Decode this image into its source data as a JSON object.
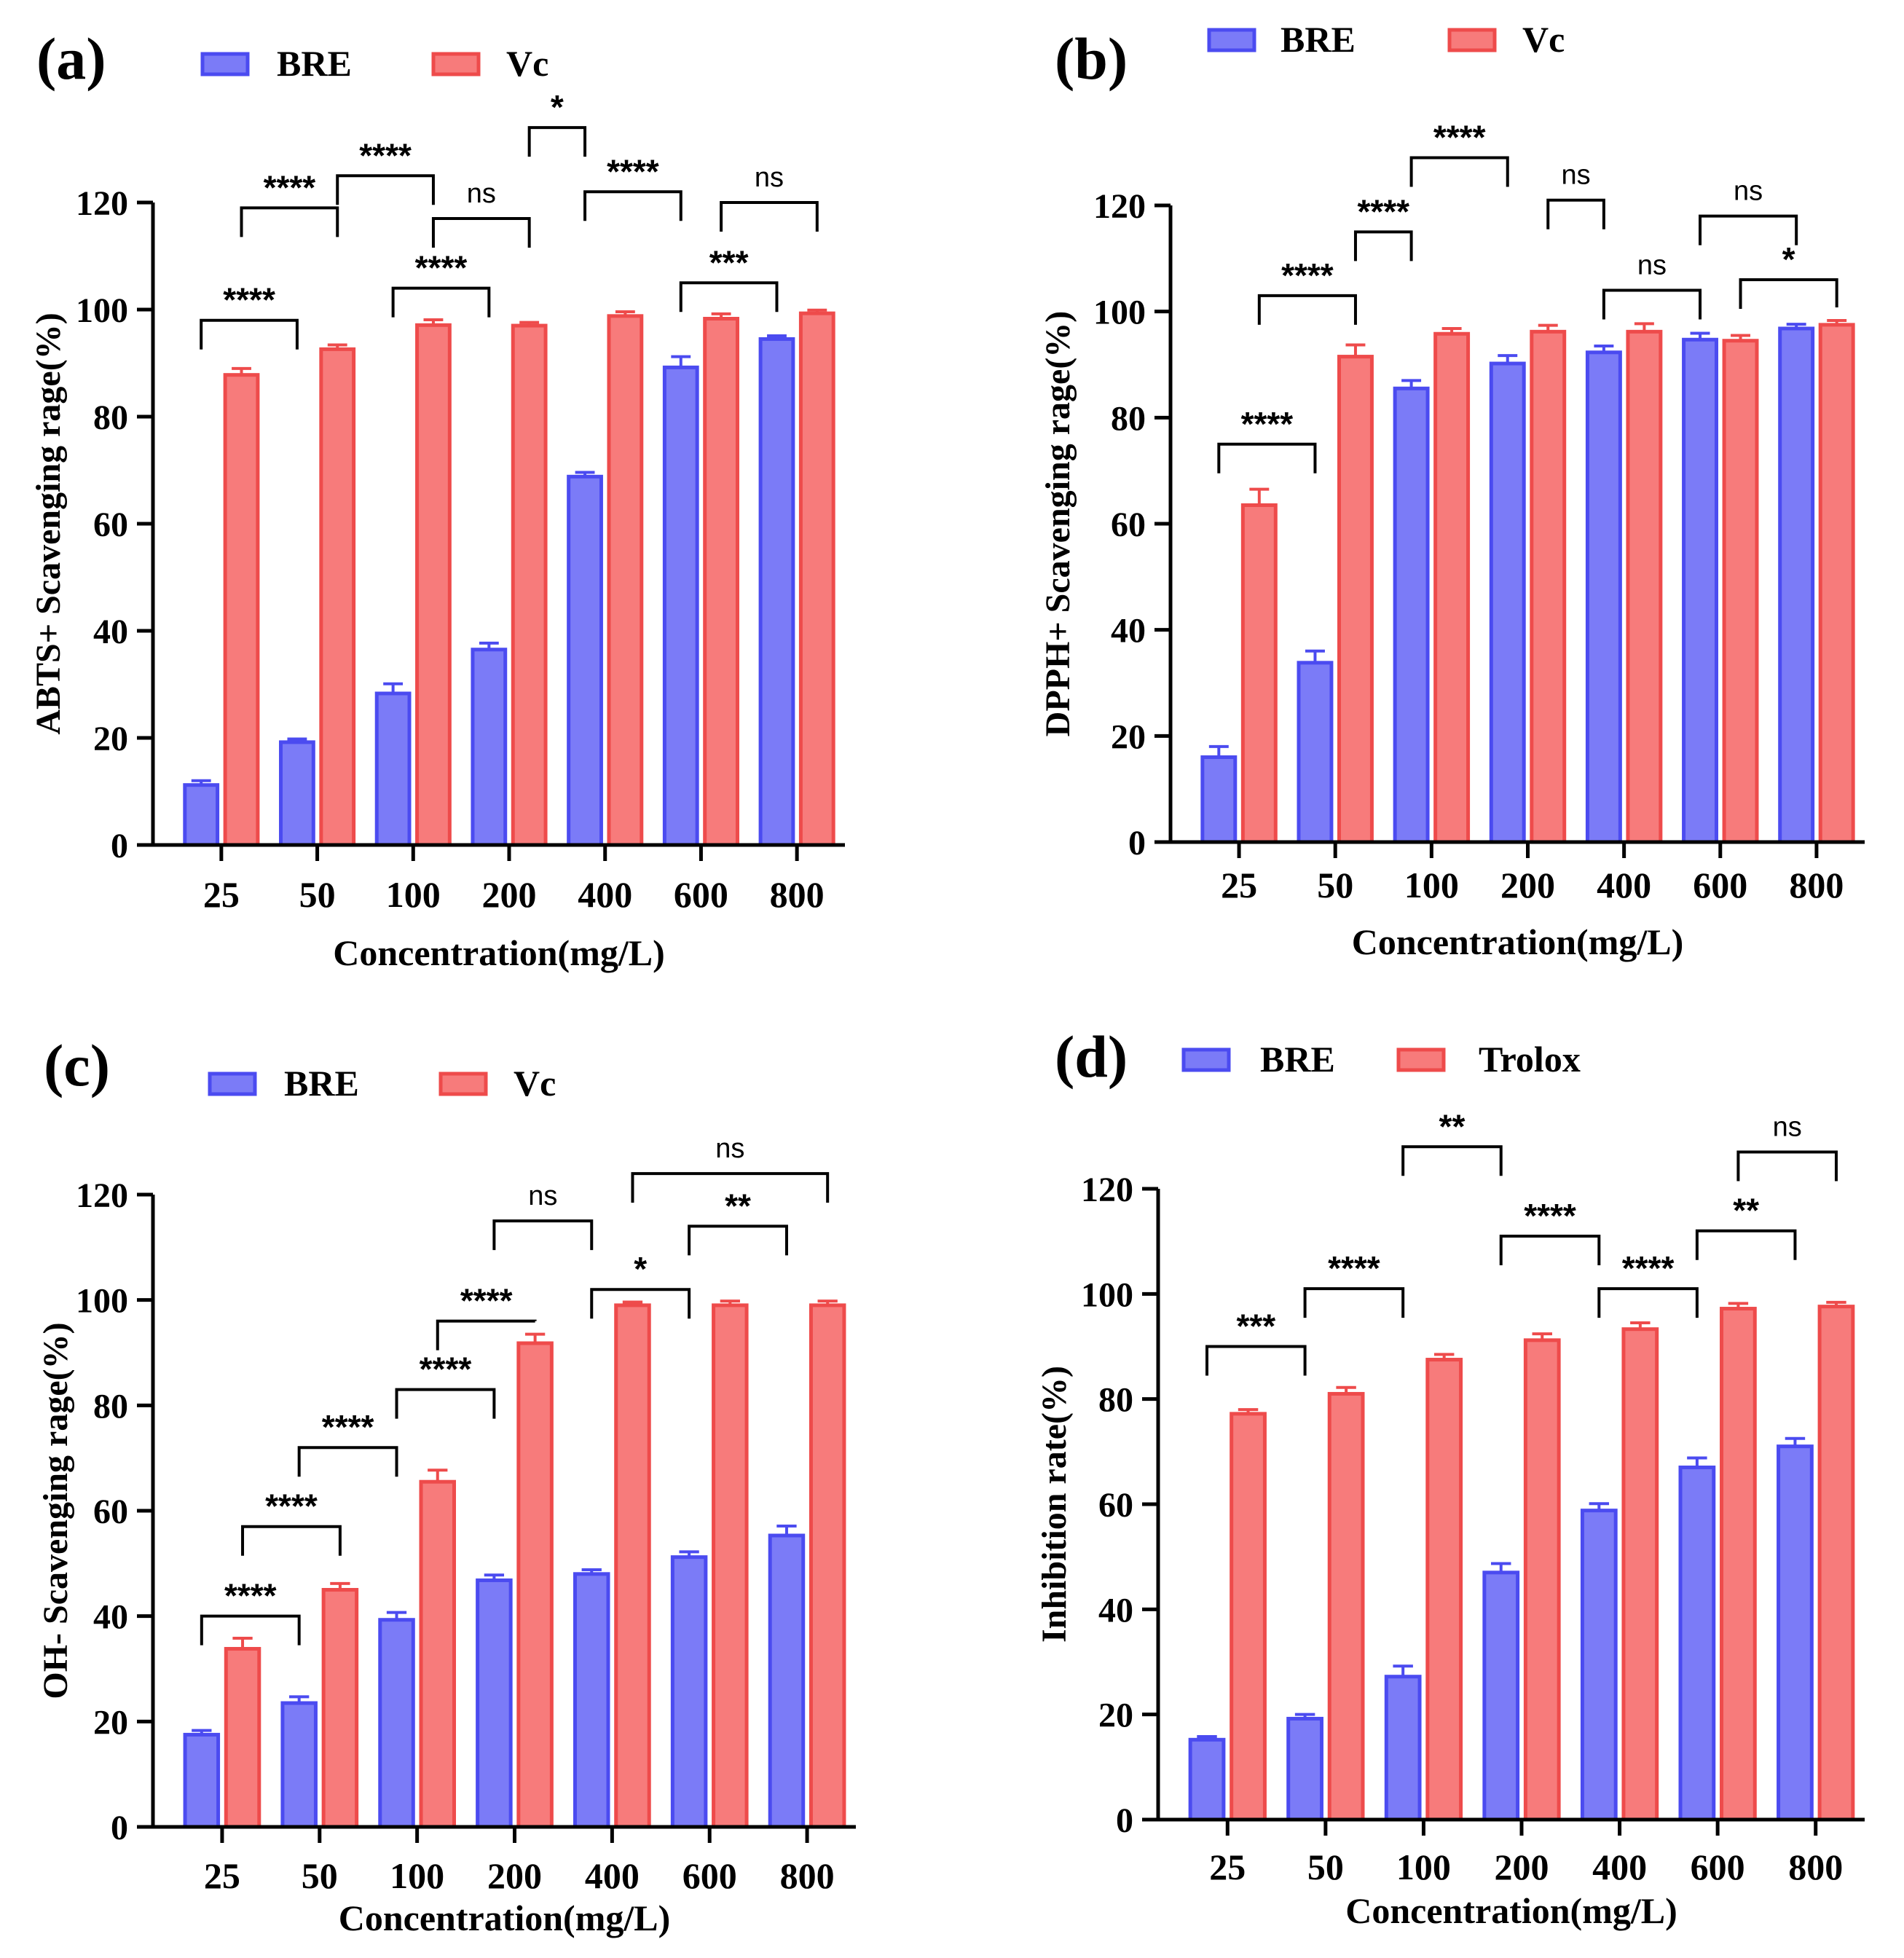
{
  "colors": {
    "series1_fill": "#7b7bf7",
    "series1_edge": "#4b4bf0",
    "series2_fill": "#f77b7b",
    "series2_edge": "#ee4b4b",
    "axis": "#000000"
  },
  "chart_data": [
    {
      "type": "bar",
      "panel_label": "(a)",
      "title": "",
      "xlabel": "Concentration(mg/L)",
      "ylabel": "ABTS+ Scavenging rage(%)",
      "ylim": [
        0,
        120
      ],
      "yticks": [
        "0",
        "20",
        "40",
        "60",
        "80",
        "100",
        "120"
      ],
      "categories": [
        "25",
        "50",
        "100",
        "200",
        "400",
        "600",
        "800"
      ],
      "series": [
        {
          "name": "BRE",
          "values": [
            11.2,
            19.2,
            28.3,
            36.5,
            68.8,
            89.2,
            94.5
          ],
          "errors": [
            0.8,
            0.6,
            1.8,
            1.2,
            0.8,
            2.0,
            0.6
          ]
        },
        {
          "name": "Vc",
          "values": [
            87.8,
            92.6,
            97.1,
            97.0,
            98.8,
            98.3,
            99.3
          ],
          "errors": [
            1.2,
            0.8,
            1.0,
            0.6,
            0.8,
            0.9,
            0.6
          ]
        }
      ],
      "significance": [
        {
          "from": [
            0,
            0
          ],
          "to": [
            1,
            0
          ],
          "level": 98,
          "label": "****"
        },
        {
          "from": [
            0,
            1
          ],
          "to": [
            1,
            1
          ],
          "level": 119,
          "label": "****"
        },
        {
          "from": [
            1,
            1
          ],
          "to": [
            2,
            1
          ],
          "level": 125,
          "label": "****"
        },
        {
          "from": [
            2,
            1
          ],
          "to": [
            3,
            1
          ],
          "level": 117,
          "label": "ns"
        },
        {
          "from": [
            2,
            0
          ],
          "to": [
            3,
            0
          ],
          "level": 104,
          "label": "****"
        },
        {
          "from": [
            3,
            1
          ],
          "to": [
            4,
            0
          ],
          "level": 134,
          "label": "*"
        },
        {
          "from": [
            4,
            0
          ],
          "to": [
            5,
            0
          ],
          "level": 122,
          "label": "****"
        },
        {
          "from": [
            5,
            0
          ],
          "to": [
            6,
            0
          ],
          "level": 105,
          "label": "***"
        },
        {
          "from": [
            5,
            1
          ],
          "to": [
            6,
            1
          ],
          "level": 120,
          "label": "ns"
        }
      ]
    },
    {
      "type": "bar",
      "panel_label": "(b)",
      "title": "",
      "xlabel": "Concentration(mg/L)",
      "ylabel": "DPPH+ Scavenging rage(%)",
      "ylim": [
        0,
        120
      ],
      "yticks": [
        "0",
        "20",
        "40",
        "60",
        "80",
        "100",
        "120"
      ],
      "categories": [
        "25",
        "50",
        "100",
        "200",
        "400",
        "600",
        "800"
      ],
      "series": [
        {
          "name": "BRE",
          "values": [
            16.0,
            33.8,
            85.5,
            90.2,
            92.3,
            94.7,
            96.8
          ],
          "errors": [
            2.0,
            2.2,
            1.5,
            1.5,
            1.2,
            1.2,
            0.8
          ]
        },
        {
          "name": "Vc",
          "values": [
            63.5,
            91.5,
            95.8,
            96.2,
            96.2,
            94.5,
            97.5
          ],
          "errors": [
            3.0,
            2.2,
            1.0,
            1.2,
            1.5,
            1.0,
            0.8
          ]
        }
      ],
      "significance": [
        {
          "from": [
            0,
            0
          ],
          "to": [
            1,
            0
          ],
          "level": 75,
          "label": "****"
        },
        {
          "from": [
            0,
            1
          ],
          "to": [
            1,
            1
          ],
          "level": 103,
          "label": "****"
        },
        {
          "from": [
            1,
            1
          ],
          "to": [
            2,
            0
          ],
          "level": 115,
          "label": "****"
        },
        {
          "from": [
            2,
            0
          ],
          "to": [
            3,
            0
          ],
          "level": 129,
          "label": "****"
        },
        {
          "from": [
            3,
            1
          ],
          "to": [
            4,
            0
          ],
          "level": 121,
          "label": "ns"
        },
        {
          "from": [
            4,
            0
          ],
          "to": [
            5,
            0
          ],
          "level": 104,
          "label": "ns"
        },
        {
          "from": [
            5,
            0
          ],
          "to": [
            6,
            0
          ],
          "level": 118,
          "label": "ns"
        },
        {
          "from": [
            5,
            1
          ],
          "to": [
            6,
            1
          ],
          "level": 106,
          "label": "*"
        }
      ]
    },
    {
      "type": "bar",
      "panel_label": "(c)",
      "title": "",
      "xlabel": "Concentration(mg/L)",
      "ylabel": "OH- Scavenging rage(%)",
      "ylim": [
        0,
        120
      ],
      "yticks": [
        "0",
        "20",
        "40",
        "60",
        "80",
        "100",
        "120"
      ],
      "categories": [
        "25",
        "50",
        "100",
        "200",
        "400",
        "600",
        "800"
      ],
      "series": [
        {
          "name": "BRE",
          "values": [
            17.5,
            23.5,
            39.3,
            46.8,
            48.0,
            51.2,
            55.3
          ],
          "errors": [
            0.8,
            1.2,
            1.4,
            1.0,
            0.8,
            1.0,
            1.8
          ]
        },
        {
          "name": "Vc",
          "values": [
            33.8,
            45.0,
            65.5,
            91.8,
            99.0,
            99.0,
            99.0
          ],
          "errors": [
            2.0,
            1.2,
            2.2,
            1.7,
            0.6,
            0.8,
            0.8
          ]
        }
      ],
      "significance": [
        {
          "from": [
            0,
            0
          ],
          "to": [
            1,
            0
          ],
          "level": 40,
          "label": "****"
        },
        {
          "from": [
            0,
            1
          ],
          "to": [
            1,
            1
          ],
          "level": 57,
          "label": "****"
        },
        {
          "from": [
            1,
            0
          ],
          "to": [
            2,
            0
          ],
          "level": 72,
          "label": "****"
        },
        {
          "from": [
            2,
            0
          ],
          "to": [
            3,
            0
          ],
          "level": 83,
          "label": "****"
        },
        {
          "from": [
            2,
            1
          ],
          "to": [
            3,
            1
          ],
          "level": 96,
          "label": "****"
        },
        {
          "from": [
            3,
            0
          ],
          "to": [
            4,
            0
          ],
          "level": 115,
          "label": "ns"
        },
        {
          "from": [
            4,
            0
          ],
          "to": [
            5,
            0
          ],
          "level": 102,
          "label": "*"
        },
        {
          "from": [
            5,
            0
          ],
          "to": [
            6,
            0
          ],
          "level": 114,
          "label": "**"
        },
        {
          "from": [
            4,
            1
          ],
          "to": [
            6,
            1
          ],
          "level": 124,
          "label": "ns"
        }
      ]
    },
    {
      "type": "bar",
      "panel_label": "(d)",
      "title": "",
      "xlabel": "Concentration(mg/L)",
      "ylabel": "Inhibition rate(%)",
      "ylim": [
        0,
        120
      ],
      "yticks": [
        "0",
        "20",
        "40",
        "60",
        "80",
        "100",
        "120"
      ],
      "categories": [
        "25",
        "50",
        "100",
        "200",
        "400",
        "600",
        "800"
      ],
      "series": [
        {
          "name": "BRE",
          "values": [
            15.2,
            19.2,
            27.2,
            47.0,
            58.8,
            67.0,
            71.0
          ],
          "errors": [
            0.6,
            0.8,
            2.0,
            1.7,
            1.3,
            1.8,
            1.5
          ]
        },
        {
          "name": "Trolox",
          "values": [
            77.2,
            81.0,
            87.5,
            91.2,
            93.3,
            97.2,
            97.6
          ],
          "errors": [
            0.8,
            1.2,
            1.0,
            1.2,
            1.2,
            1.0,
            0.8
          ]
        }
      ],
      "significance": [
        {
          "from": [
            0,
            0
          ],
          "to": [
            1,
            0
          ],
          "level": 90,
          "label": "***"
        },
        {
          "from": [
            1,
            0
          ],
          "to": [
            2,
            0
          ],
          "level": 101,
          "label": "****"
        },
        {
          "from": [
            2,
            0
          ],
          "to": [
            3,
            0
          ],
          "level": 128,
          "label": "**"
        },
        {
          "from": [
            3,
            0
          ],
          "to": [
            4,
            0
          ],
          "level": 111,
          "label": "****"
        },
        {
          "from": [
            4,
            0
          ],
          "to": [
            5,
            0
          ],
          "level": 101,
          "label": "****"
        },
        {
          "from": [
            5,
            0
          ],
          "to": [
            6,
            0
          ],
          "level": 112,
          "label": "**"
        },
        {
          "from": [
            5,
            1
          ],
          "to": [
            6,
            1
          ],
          "level": 127,
          "label": "ns"
        }
      ]
    }
  ]
}
